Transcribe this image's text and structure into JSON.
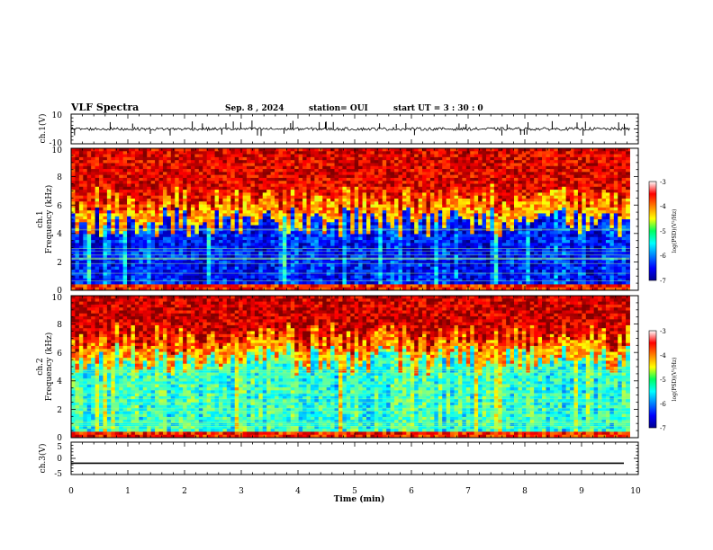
{
  "header": {
    "title": "VLF Spectra",
    "date": "Sep. 8 , 2024",
    "station": "station= OUI",
    "start": "start  UT =   3 : 30 : 0"
  },
  "chart_data": [
    {
      "type": "line",
      "name": "ch.1 waveform",
      "ylabel": "ch.1(V)",
      "ylim": [
        -10,
        10
      ],
      "y_ticks": [
        "10",
        "-10"
      ],
      "baseline": 0,
      "noise_amplitude": 2,
      "spike_amplitude": 5,
      "color": "#000000"
    },
    {
      "type": "heatmap",
      "name": "ch.1 spectrogram",
      "ylabel_top": "ch.1",
      "ylabel": "Frequency  (kHz)",
      "ylim": [
        0,
        10
      ],
      "y_ticks": [
        "0",
        "2",
        "4",
        "6",
        "8",
        "10"
      ],
      "xlim": [
        0,
        9.85
      ],
      "colorbar": {
        "label": "log(PSD)(V²/Hz)",
        "range": [
          -7,
          -3
        ],
        "ticks": [
          "-3",
          "-4",
          "-5",
          "-6",
          "-7"
        ]
      },
      "low_band_top_khz": 4.8,
      "low_band_level": -6.4,
      "high_band_level": -3.4
    },
    {
      "type": "heatmap",
      "name": "ch.2 spectrogram",
      "ylabel_top": "ch.2",
      "ylabel": "Frequency  (kHz)",
      "ylim": [
        0,
        10
      ],
      "y_ticks": [
        "0",
        "2",
        "4",
        "6",
        "8",
        "10"
      ],
      "xlim": [
        0,
        9.85
      ],
      "colorbar": {
        "label": "log(PSD)(V²/Hz)",
        "range": [
          -7,
          -3
        ],
        "ticks": [
          "-3",
          "-4",
          "-5",
          "-6",
          "-7"
        ]
      },
      "low_band_top_khz": 5.5,
      "low_band_level": -5.3,
      "high_band_level": -3.3
    },
    {
      "type": "line",
      "name": "ch.3 waveform",
      "ylabel": "ch.3(V)",
      "ylim": [
        -5,
        5
      ],
      "y_ticks": [
        "5",
        "0",
        "-5"
      ],
      "baseline": -1.5,
      "color": "#000000"
    }
  ],
  "x_axis": {
    "xlabel": "Time  (min)",
    "xlim": [
      0,
      10
    ],
    "ticks": [
      "0",
      "1",
      "2",
      "3",
      "4",
      "5",
      "6",
      "7",
      "8",
      "9",
      "10"
    ]
  }
}
